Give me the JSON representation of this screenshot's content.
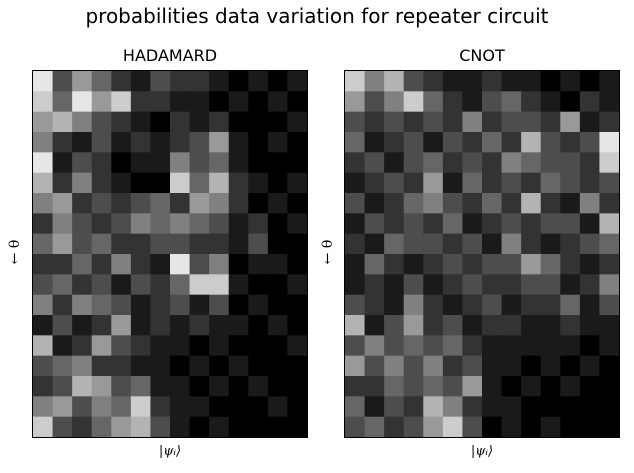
{
  "chart_data": {
    "type": "heatmap",
    "title": "probabilities data variation for repeater circuit",
    "colormap": "gray",
    "panels": [
      {
        "title": "HADAMARD",
        "xlabel": "|ψᵢ⟩",
        "ylabel": "← θ",
        "rows": 18,
        "cols": 14,
        "values": [
          [
            0.9,
            0.3,
            0.6,
            0.4,
            0.2,
            0.1,
            0.3,
            0.2,
            0.2,
            0.1,
            0.0,
            0.1,
            0.0,
            0.1
          ],
          [
            0.8,
            0.4,
            0.9,
            0.6,
            0.8,
            0.2,
            0.2,
            0.1,
            0.1,
            0.0,
            0.1,
            0.0,
            0.1,
            0.0
          ],
          [
            0.6,
            0.7,
            0.5,
            0.3,
            0.2,
            0.1,
            0.0,
            0.2,
            0.1,
            0.2,
            0.0,
            0.0,
            0.0,
            0.1
          ],
          [
            0.5,
            0.2,
            0.1,
            0.3,
            0.1,
            0.2,
            0.1,
            0.2,
            0.3,
            0.6,
            0.1,
            0.0,
            0.1,
            0.0
          ],
          [
            0.9,
            0.1,
            0.3,
            0.2,
            0.0,
            0.1,
            0.1,
            0.5,
            0.3,
            0.4,
            0.1,
            0.0,
            0.0,
            0.0
          ],
          [
            0.7,
            0.2,
            0.5,
            0.2,
            0.1,
            0.0,
            0.0,
            0.8,
            0.4,
            0.7,
            0.2,
            0.1,
            0.0,
            0.1
          ],
          [
            0.5,
            0.6,
            0.2,
            0.3,
            0.2,
            0.3,
            0.4,
            0.2,
            0.6,
            0.5,
            0.2,
            0.0,
            0.1,
            0.0
          ],
          [
            0.2,
            0.5,
            0.3,
            0.2,
            0.3,
            0.5,
            0.4,
            0.5,
            0.4,
            0.3,
            0.1,
            0.2,
            0.0,
            0.1
          ],
          [
            0.4,
            0.6,
            0.3,
            0.4,
            0.2,
            0.2,
            0.3,
            0.3,
            0.2,
            0.2,
            0.1,
            0.3,
            0.0,
            0.0
          ],
          [
            0.2,
            0.2,
            0.4,
            0.2,
            0.5,
            0.2,
            0.1,
            0.9,
            0.3,
            0.5,
            0.0,
            0.1,
            0.1,
            0.0
          ],
          [
            0.3,
            0.4,
            0.2,
            0.3,
            0.1,
            0.3,
            0.2,
            0.4,
            0.8,
            0.8,
            0.1,
            0.0,
            0.0,
            0.1
          ],
          [
            0.5,
            0.2,
            0.5,
            0.4,
            0.3,
            0.1,
            0.2,
            0.3,
            0.1,
            0.3,
            0.0,
            0.1,
            0.0,
            0.0
          ],
          [
            0.1,
            0.3,
            0.1,
            0.2,
            0.6,
            0.1,
            0.2,
            0.1,
            0.2,
            0.1,
            0.1,
            0.0,
            0.1,
            0.0
          ],
          [
            0.7,
            0.1,
            0.2,
            0.6,
            0.3,
            0.2,
            0.1,
            0.1,
            0.0,
            0.1,
            0.0,
            0.0,
            0.0,
            0.1
          ],
          [
            0.3,
            0.4,
            0.5,
            0.2,
            0.2,
            0.1,
            0.1,
            0.0,
            0.1,
            0.0,
            0.1,
            0.0,
            0.0,
            0.0
          ],
          [
            0.2,
            0.3,
            0.7,
            0.6,
            0.3,
            0.4,
            0.1,
            0.1,
            0.0,
            0.1,
            0.0,
            0.1,
            0.0,
            0.0
          ],
          [
            0.5,
            0.6,
            0.3,
            0.5,
            0.4,
            0.8,
            0.2,
            0.1,
            0.1,
            0.0,
            0.0,
            0.0,
            0.1,
            0.0
          ],
          [
            0.8,
            0.3,
            0.2,
            0.4,
            0.6,
            0.7,
            0.3,
            0.1,
            0.0,
            0.1,
            0.0,
            0.0,
            0.0,
            0.0
          ]
        ]
      },
      {
        "title": "CNOT",
        "xlabel": "|ψᵢ⟩",
        "ylabel": "← θ",
        "rows": 18,
        "cols": 14,
        "values": [
          [
            0.8,
            0.5,
            0.7,
            0.3,
            0.2,
            0.1,
            0.1,
            0.2,
            0.1,
            0.1,
            0.0,
            0.1,
            0.0,
            0.1
          ],
          [
            0.6,
            0.3,
            0.5,
            0.8,
            0.4,
            0.2,
            0.1,
            0.3,
            0.4,
            0.2,
            0.1,
            0.0,
            0.2,
            0.1
          ],
          [
            0.3,
            0.2,
            0.3,
            0.2,
            0.3,
            0.2,
            0.5,
            0.2,
            0.3,
            0.3,
            0.2,
            0.6,
            0.1,
            0.2
          ],
          [
            0.4,
            0.1,
            0.2,
            0.3,
            0.1,
            0.3,
            0.2,
            0.4,
            0.2,
            0.7,
            0.3,
            0.2,
            0.3,
            0.9
          ],
          [
            0.2,
            0.3,
            0.1,
            0.3,
            0.4,
            0.2,
            0.3,
            0.2,
            0.5,
            0.4,
            0.3,
            0.3,
            0.2,
            0.8
          ],
          [
            0.1,
            0.2,
            0.3,
            0.2,
            0.6,
            0.1,
            0.4,
            0.2,
            0.3,
            0.2,
            0.4,
            0.3,
            0.2,
            0.3
          ],
          [
            0.3,
            0.1,
            0.2,
            0.4,
            0.5,
            0.3,
            0.2,
            0.4,
            0.2,
            0.7,
            0.2,
            0.1,
            0.5,
            0.2
          ],
          [
            0.1,
            0.3,
            0.2,
            0.3,
            0.2,
            0.4,
            0.1,
            0.2,
            0.3,
            0.2,
            0.3,
            0.3,
            0.1,
            0.7
          ],
          [
            0.2,
            0.1,
            0.4,
            0.3,
            0.3,
            0.2,
            0.3,
            0.1,
            0.5,
            0.2,
            0.1,
            0.2,
            0.3,
            0.4
          ],
          [
            0.1,
            0.4,
            0.2,
            0.1,
            0.2,
            0.3,
            0.2,
            0.3,
            0.3,
            0.6,
            0.4,
            0.2,
            0.1,
            0.2
          ],
          [
            0.1,
            0.2,
            0.1,
            0.3,
            0.1,
            0.2,
            0.3,
            0.2,
            0.2,
            0.3,
            0.3,
            0.1,
            0.2,
            0.5
          ],
          [
            0.3,
            0.2,
            0.1,
            0.5,
            0.2,
            0.1,
            0.2,
            0.3,
            0.1,
            0.2,
            0.2,
            0.4,
            0.1,
            0.3
          ],
          [
            0.7,
            0.1,
            0.3,
            0.6,
            0.2,
            0.3,
            0.1,
            0.2,
            0.2,
            0.1,
            0.1,
            0.2,
            0.1,
            0.1
          ],
          [
            0.3,
            0.5,
            0.3,
            0.4,
            0.3,
            0.4,
            0.2,
            0.1,
            0.1,
            0.1,
            0.1,
            0.1,
            0.0,
            0.1
          ],
          [
            0.6,
            0.3,
            0.5,
            0.3,
            0.5,
            0.2,
            0.3,
            0.1,
            0.1,
            0.0,
            0.1,
            0.0,
            0.1,
            0.0
          ],
          [
            0.2,
            0.2,
            0.4,
            0.3,
            0.4,
            0.3,
            0.6,
            0.1,
            0.0,
            0.1,
            0.0,
            0.1,
            0.0,
            0.0
          ],
          [
            0.4,
            0.1,
            0.3,
            0.2,
            0.7,
            0.5,
            0.2,
            0.1,
            0.1,
            0.0,
            0.0,
            0.0,
            0.0,
            0.0
          ],
          [
            0.3,
            0.4,
            0.2,
            0.3,
            0.6,
            0.8,
            0.3,
            0.0,
            0.1,
            0.0,
            0.1,
            0.0,
            0.0,
            0.0
          ]
        ]
      }
    ]
  }
}
